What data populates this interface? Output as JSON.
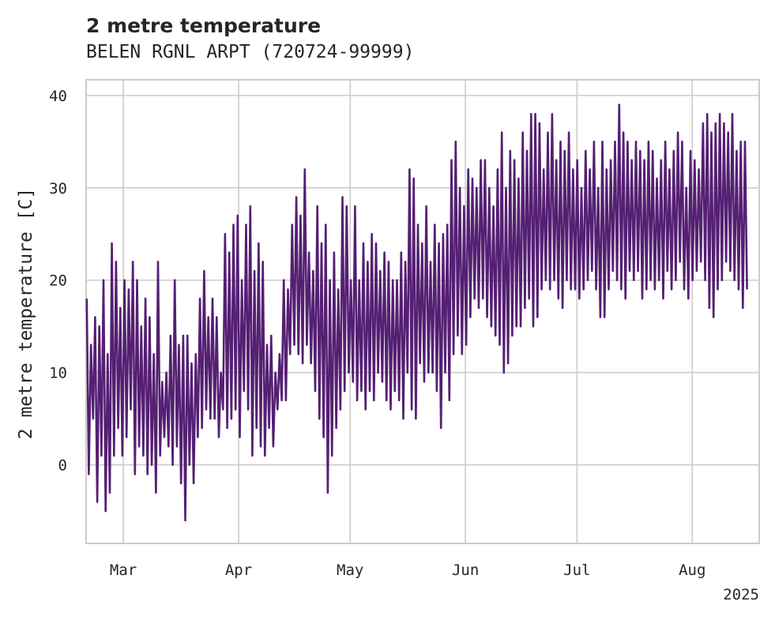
{
  "chart_data": {
    "type": "line",
    "title": "2 metre temperature",
    "subtitle": "BELEN RGNL ARPT (720724-99999)",
    "ylabel": "2 metre temperature [C]",
    "xlabel": "",
    "x_range": [
      "2025-02-19",
      "2025-08-19"
    ],
    "ylim": [
      -8.5,
      41.7
    ],
    "y_ticks": [
      0,
      10,
      20,
      30,
      40
    ],
    "x_ticks": [
      {
        "date": "2025-03-01",
        "label": "Mar"
      },
      {
        "date": "2025-04-01",
        "label": "Apr"
      },
      {
        "date": "2025-05-01",
        "label": "May"
      },
      {
        "date": "2025-06-01",
        "label": "Jun"
      },
      {
        "date": "2025-07-01",
        "label": "Jul"
      },
      {
        "date": "2025-08-01",
        "label": "Aug"
      }
    ],
    "x_offset_label": "2025",
    "grid": true,
    "line_color": "#551f73",
    "series": [
      {
        "x_start": "2025-02-19",
        "x_end": "2025-08-15",
        "daily_max": [
          18,
          13,
          16,
          15,
          20,
          12,
          24,
          22,
          17,
          20,
          19,
          22,
          20,
          15,
          18,
          16,
          12,
          22,
          9,
          10,
          14,
          20,
          13,
          14,
          14,
          11,
          12,
          18,
          21,
          16,
          18,
          16,
          10,
          25,
          23,
          26,
          27,
          20,
          26,
          28,
          21,
          24,
          22,
          13,
          14,
          10,
          12,
          20,
          19,
          26,
          29,
          27,
          32,
          23,
          21,
          28,
          24,
          26,
          20,
          23,
          19,
          29,
          28,
          20,
          28,
          20,
          24,
          22,
          25,
          24,
          21,
          23,
          22,
          20,
          20,
          23,
          22,
          32,
          31,
          26,
          24,
          28,
          22,
          26,
          24,
          25,
          26,
          33,
          35,
          30,
          28,
          32,
          31,
          30,
          33,
          33,
          30,
          28,
          32,
          36,
          30,
          34,
          33,
          31,
          36,
          34,
          38,
          38,
          37,
          32,
          36,
          38,
          33,
          35,
          34,
          36,
          32,
          33,
          30,
          34,
          32,
          35,
          30,
          35,
          32,
          33,
          35,
          39,
          36,
          35,
          33,
          35,
          34,
          33,
          35,
          34,
          31,
          33,
          35,
          32,
          34,
          36,
          35,
          30,
          34,
          33,
          32,
          37,
          38,
          36,
          37,
          38,
          37,
          36,
          38,
          34,
          35,
          35
        ],
        "daily_min": [
          -1,
          5,
          -4,
          1,
          -5,
          -3,
          1,
          4,
          1,
          3,
          6,
          -1,
          2,
          1,
          -1,
          0,
          -3,
          1,
          3,
          2,
          0,
          2,
          -2,
          -6,
          0,
          -2,
          3,
          4,
          6,
          5,
          5,
          3,
          6,
          4,
          5,
          6,
          3,
          8,
          6,
          1,
          4,
          2,
          1,
          4,
          2,
          6,
          7,
          7,
          12,
          13,
          12,
          11,
          13,
          11,
          8,
          5,
          3,
          -3,
          1,
          4,
          6,
          8,
          10,
          9,
          7,
          8,
          6,
          8,
          7,
          10,
          9,
          7,
          6,
          8,
          7,
          5,
          10,
          6,
          5,
          11,
          9,
          10,
          10,
          8,
          4,
          10,
          7,
          12,
          14,
          12,
          13,
          16,
          18,
          17,
          18,
          16,
          15,
          14,
          13,
          10,
          11,
          14,
          15,
          15,
          17,
          18,
          15,
          16,
          19,
          20,
          19,
          20,
          18,
          17,
          20,
          19,
          19,
          18,
          19,
          20,
          21,
          19,
          16,
          16,
          19,
          21,
          20,
          19,
          18,
          21,
          20,
          21,
          18,
          19,
          20,
          19,
          20,
          18,
          21,
          19,
          20,
          22,
          19,
          18,
          20,
          21,
          22,
          20,
          17,
          16,
          19,
          20,
          22,
          21,
          20,
          19,
          17,
          19
        ]
      }
    ]
  }
}
